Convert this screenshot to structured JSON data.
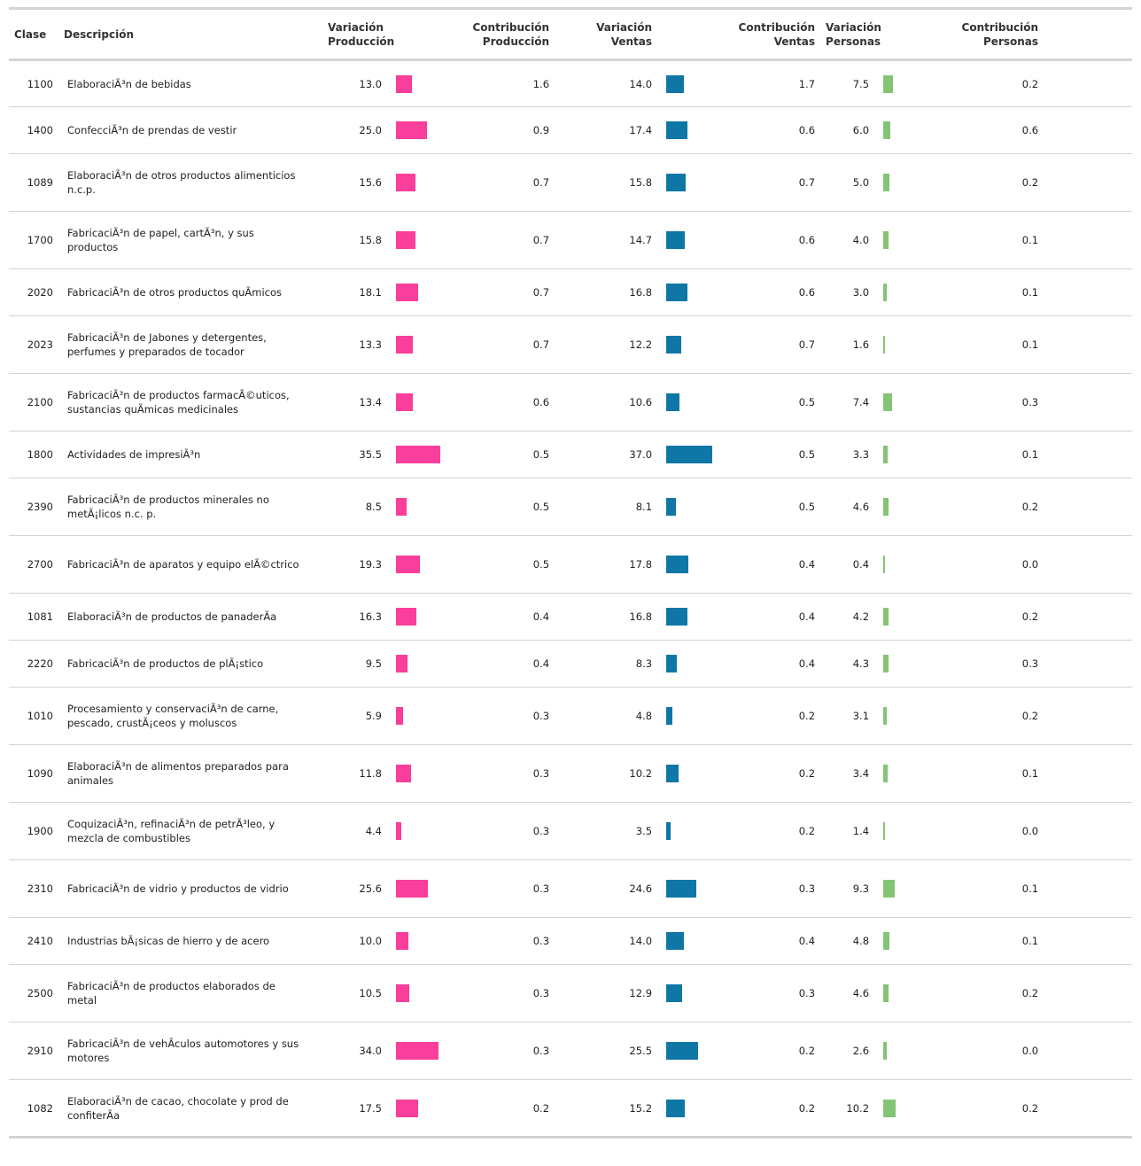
{
  "headers": {
    "clase": "Clase",
    "descripcion": "Descripción",
    "var_prod_1": "Variación",
    "var_prod_2": "Producción",
    "con_prod_1": "Contribución",
    "con_prod_2": "Producción",
    "var_ven_1": "Variación",
    "var_ven_2": "Ventas",
    "con_ven_1": "Contribución",
    "con_ven_2": "Ventas",
    "var_per_1": "Variación",
    "var_per_2": "Personas",
    "con_per_1": "Contribución",
    "con_per_2": "Personas"
  },
  "colors": {
    "produccion": "#f93e9b",
    "ventas": "#0f77a5",
    "personas": "#84c475"
  },
  "chart_data": {
    "type": "table",
    "columns": [
      "Clase",
      "Descripción",
      "Variación Producción",
      "Contribución Producción",
      "Variación Ventas",
      "Contribución Ventas",
      "Variación Personas",
      "Contribución Personas"
    ],
    "bar_columns": [
      "Variación Producción",
      "Variación Ventas",
      "Variación Personas"
    ],
    "rows": [
      {
        "clase": "1100",
        "desc": "ElaboraciÃ³n de bebidas",
        "var_prod": "13.0",
        "con_prod": "1.6",
        "var_ven": "14.0",
        "con_ven": "1.7",
        "var_per": "7.5",
        "con_per": "0.2"
      },
      {
        "clase": "1400",
        "desc": "ConfecciÃ³n de prendas de vestir",
        "var_prod": "25.0",
        "con_prod": "0.9",
        "var_ven": "17.4",
        "con_ven": "0.6",
        "var_per": "6.0",
        "con_per": "0.6"
      },
      {
        "clase": "1089",
        "desc": "ElaboraciÃ³n de otros productos alimenticios n.c.p.",
        "var_prod": "15.6",
        "con_prod": "0.7",
        "var_ven": "15.8",
        "con_ven": "0.7",
        "var_per": "5.0",
        "con_per": "0.2"
      },
      {
        "clase": "1700",
        "desc": "FabricaciÃ³n de papel, cartÃ³n, y sus productos",
        "var_prod": "15.8",
        "con_prod": "0.7",
        "var_ven": "14.7",
        "con_ven": "0.6",
        "var_per": "4.0",
        "con_per": "0.1"
      },
      {
        "clase": "2020",
        "desc": "FabricaciÃ³n de otros productos quÃmicos",
        "var_prod": "18.1",
        "con_prod": "0.7",
        "var_ven": "16.8",
        "con_ven": "0.6",
        "var_per": "3.0",
        "con_per": "0.1"
      },
      {
        "clase": "2023",
        "desc": "FabricaciÃ³n de Jabones y detergentes, perfumes y preparados de tocador",
        "var_prod": "13.3",
        "con_prod": "0.7",
        "var_ven": "12.2",
        "con_ven": "0.7",
        "var_per": "1.6",
        "con_per": "0.1"
      },
      {
        "clase": "2100",
        "desc": "FabricaciÃ³n de productos farmacÃ©uticos, sustancias quÃmicas medicinales",
        "var_prod": "13.4",
        "con_prod": "0.6",
        "var_ven": "10.6",
        "con_ven": "0.5",
        "var_per": "7.4",
        "con_per": "0.3"
      },
      {
        "clase": "1800",
        "desc": "Actividades de impresiÃ³n",
        "var_prod": "35.5",
        "con_prod": "0.5",
        "var_ven": "37.0",
        "con_ven": "0.5",
        "var_per": "3.3",
        "con_per": "0.1"
      },
      {
        "clase": "2390",
        "desc": "FabricaciÃ³n de productos minerales no metÃ¡licos n.c. p.",
        "var_prod": "8.5",
        "con_prod": "0.5",
        "var_ven": "8.1",
        "con_ven": "0.5",
        "var_per": "4.6",
        "con_per": "0.2"
      },
      {
        "clase": "2700",
        "desc": "FabricaciÃ³n de aparatos y equipo elÃ©ctrico",
        "var_prod": "19.3",
        "con_prod": "0.5",
        "var_ven": "17.8",
        "con_ven": "0.4",
        "var_per": "0.4",
        "con_per": "0.0"
      },
      {
        "clase": "1081",
        "desc": "ElaboraciÃ³n de productos de panaderÃa",
        "var_prod": "16.3",
        "con_prod": "0.4",
        "var_ven": "16.8",
        "con_ven": "0.4",
        "var_per": "4.2",
        "con_per": "0.2"
      },
      {
        "clase": "2220",
        "desc": "FabricaciÃ³n de productos de plÃ¡stico",
        "var_prod": "9.5",
        "con_prod": "0.4",
        "var_ven": "8.3",
        "con_ven": "0.4",
        "var_per": "4.3",
        "con_per": "0.3"
      },
      {
        "clase": "1010",
        "desc": "Procesamiento y conservaciÃ³n de carne, pescado, crustÃ¡ceos y moluscos",
        "var_prod": "5.9",
        "con_prod": "0.3",
        "var_ven": "4.8",
        "con_ven": "0.2",
        "var_per": "3.1",
        "con_per": "0.2"
      },
      {
        "clase": "1090",
        "desc": "ElaboraciÃ³n de alimentos preparados para animales",
        "var_prod": "11.8",
        "con_prod": "0.3",
        "var_ven": "10.2",
        "con_ven": "0.2",
        "var_per": "3.4",
        "con_per": "0.1"
      },
      {
        "clase": "1900",
        "desc": "CoquizaciÃ³n, refinaciÃ³n de petrÃ³leo, y mezcla de combustibles",
        "var_prod": "4.4",
        "con_prod": "0.3",
        "var_ven": "3.5",
        "con_ven": "0.2",
        "var_per": "1.4",
        "con_per": "0.0"
      },
      {
        "clase": "2310",
        "desc": "FabricaciÃ³n de vidrio y productos de vidrio",
        "var_prod": "25.6",
        "con_prod": "0.3",
        "var_ven": "24.6",
        "con_ven": "0.3",
        "var_per": "9.3",
        "con_per": "0.1"
      },
      {
        "clase": "2410",
        "desc": "Industrias bÃ¡sicas de hierro y de acero",
        "var_prod": "10.0",
        "con_prod": "0.3",
        "var_ven": "14.0",
        "con_ven": "0.4",
        "var_per": "4.8",
        "con_per": "0.1"
      },
      {
        "clase": "2500",
        "desc": "FabricaciÃ³n de productos elaborados de metal",
        "var_prod": "10.5",
        "con_prod": "0.3",
        "var_ven": "12.9",
        "con_ven": "0.3",
        "var_per": "4.6",
        "con_per": "0.2"
      },
      {
        "clase": "2910",
        "desc": "FabricaciÃ³n de vehÃculos automotores y sus motores",
        "var_prod": "34.0",
        "con_prod": "0.3",
        "var_ven": "25.5",
        "con_ven": "0.2",
        "var_per": "2.6",
        "con_per": "0.0"
      },
      {
        "clase": "1082",
        "desc": "ElaboraciÃ³n de cacao, chocolate y prod de confiterÃa",
        "var_prod": "17.5",
        "con_prod": "0.2",
        "var_ven": "15.2",
        "con_ven": "0.2",
        "var_per": "10.2",
        "con_per": "0.2"
      }
    ]
  }
}
